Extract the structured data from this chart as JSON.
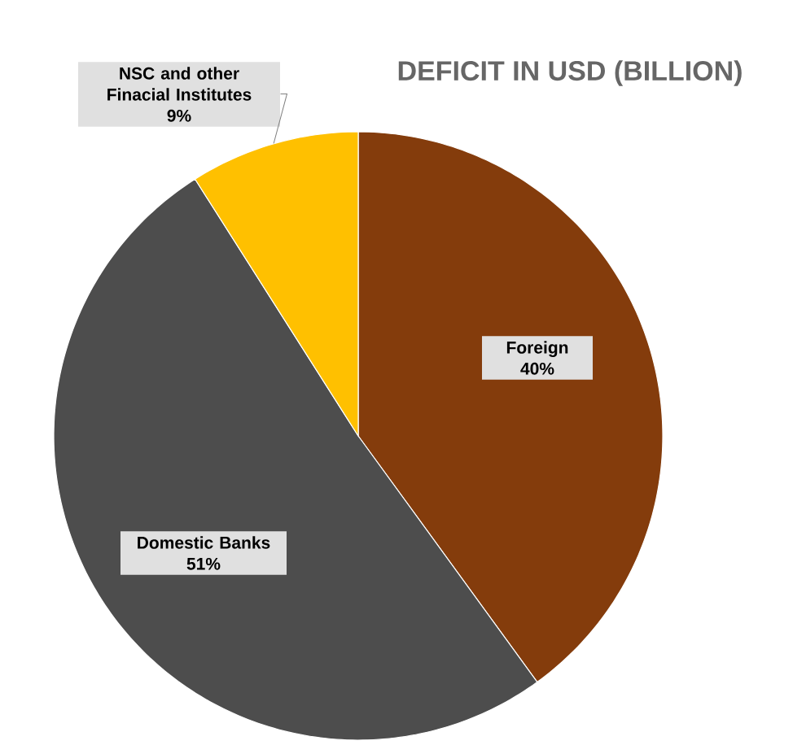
{
  "chart_data": {
    "type": "pie",
    "title": "DEFICIT IN USD (BILLION)",
    "categories": [
      "Foreign",
      "Domestic Banks",
      "NSC and other Finacial Institutes"
    ],
    "values": [
      40,
      51,
      9
    ],
    "colors": [
      "#843c0c",
      "#4d4d4d",
      "#ffc000"
    ],
    "value_labels": [
      "40%",
      "51%",
      "9%"
    ]
  }
}
